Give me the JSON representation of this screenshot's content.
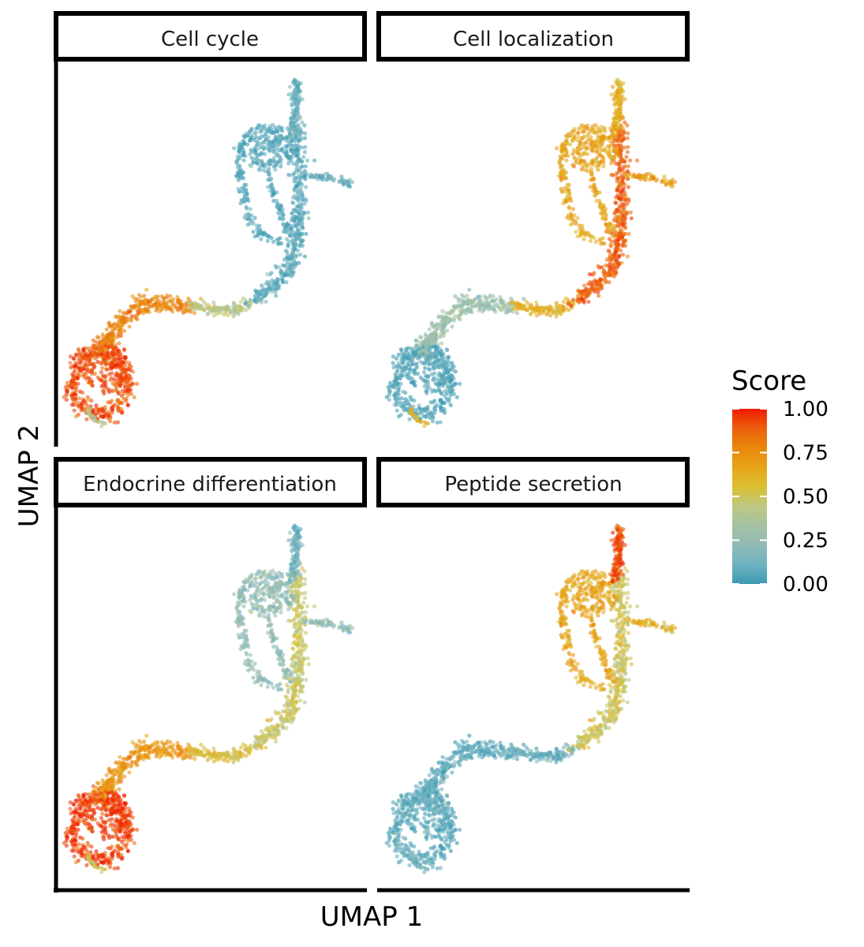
{
  "chart_data": {
    "type": "scatter",
    "title": "",
    "xlabel": "UMAP 1",
    "ylabel": "UMAP 2",
    "facets": [
      {
        "name": "Cell cycle",
        "score_by_region": {
          "cluster_loop": 0.92,
          "left_arm": 0.78,
          "bridge": 0.42,
          "trunk": 0.08,
          "top_loops": 0.06,
          "side_spur": 0.08,
          "top_tip": 0.1,
          "tail": 0.4
        }
      },
      {
        "name": "Cell localization",
        "score_by_region": {
          "cluster_loop": 0.05,
          "left_arm": 0.28,
          "bridge": 0.62,
          "trunk": 0.88,
          "top_loops": 0.66,
          "side_spur": 0.68,
          "top_tip": 0.62,
          "tail": 0.6
        }
      },
      {
        "name": "Endocrine differentiation",
        "score_by_region": {
          "cluster_loop": 0.95,
          "left_arm": 0.72,
          "bridge": 0.55,
          "trunk": 0.48,
          "top_loops": 0.24,
          "side_spur": 0.22,
          "top_tip": 0.12,
          "tail": 0.5
        }
      },
      {
        "name": "Peptide secretion",
        "score_by_region": {
          "cluster_loop": 0.08,
          "left_arm": 0.08,
          "bridge": 0.1,
          "trunk": 0.5,
          "top_loops": 0.66,
          "side_spur": 0.6,
          "top_tip": 0.92,
          "tail": 0.15
        }
      }
    ],
    "color_scale": {
      "title": "Score",
      "range": [
        0,
        1
      ],
      "breaks": [
        1.0,
        0.75,
        0.5,
        0.25,
        0.0
      ],
      "labels": [
        "1.00",
        "0.75",
        "0.50",
        "0.25",
        "0.00"
      ],
      "colors": [
        "#3a9ab2",
        "#6fb2c1",
        "#91bab6",
        "#a5c2a3",
        "#bdc881",
        "#dcbe30",
        "#e8a419",
        "#e9870c",
        "#ec5f0d",
        "#f11b00"
      ]
    },
    "axes": {
      "ticks": false,
      "grid": false
    },
    "legend_position": "right"
  }
}
